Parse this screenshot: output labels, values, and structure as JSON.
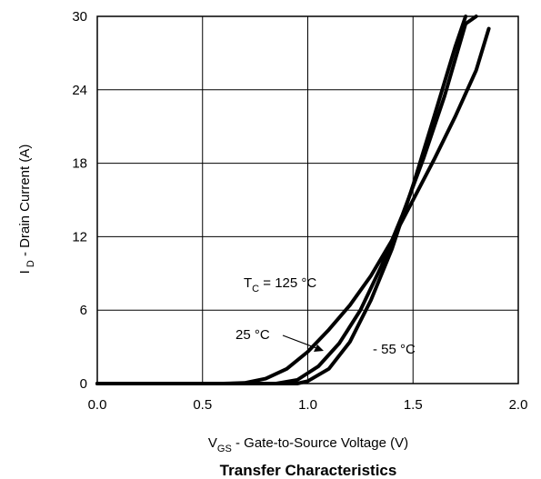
{
  "chart_data": {
    "type": "line",
    "title": "Transfer Characteristics",
    "xlabel": {
      "main": "V",
      "sub": "GS",
      "rest": " - Gate-to-Source Voltage (V)"
    },
    "ylabel": {
      "main": "I",
      "sub": " D",
      "rest": " - Drain Current (A)"
    },
    "xlim": [
      0.0,
      2.0
    ],
    "ylim": [
      0,
      30
    ],
    "x_ticks": [
      "0.0",
      "0.5",
      "1.0",
      "1.5",
      "2.0"
    ],
    "y_ticks": [
      "0",
      "6",
      "12",
      "18",
      "24",
      "30"
    ],
    "grid": true,
    "series": [
      {
        "name": "T_C = 125 °C",
        "points": [
          [
            0.0,
            0
          ],
          [
            0.6,
            0
          ],
          [
            0.7,
            0.05
          ],
          [
            0.8,
            0.4
          ],
          [
            0.9,
            1.2
          ],
          [
            1.0,
            2.6
          ],
          [
            1.1,
            4.4
          ],
          [
            1.2,
            6.4
          ],
          [
            1.3,
            8.8
          ],
          [
            1.4,
            11.7
          ],
          [
            1.5,
            15.0
          ],
          [
            1.6,
            18.3
          ],
          [
            1.7,
            21.8
          ],
          [
            1.8,
            25.6
          ],
          [
            1.86,
            29.0
          ]
        ]
      },
      {
        "name": "25 °C",
        "points": [
          [
            0.0,
            0
          ],
          [
            0.85,
            0
          ],
          [
            0.95,
            0.3
          ],
          [
            1.05,
            1.4
          ],
          [
            1.15,
            3.3
          ],
          [
            1.25,
            6.0
          ],
          [
            1.35,
            9.6
          ],
          [
            1.45,
            13.8
          ],
          [
            1.55,
            18.4
          ],
          [
            1.65,
            23.5
          ],
          [
            1.75,
            29.4
          ],
          [
            1.8,
            30.0
          ]
        ]
      },
      {
        "name": "- 55 °C",
        "points": [
          [
            0.0,
            0
          ],
          [
            0.95,
            0
          ],
          [
            1.0,
            0.2
          ],
          [
            1.1,
            1.2
          ],
          [
            1.2,
            3.4
          ],
          [
            1.3,
            6.8
          ],
          [
            1.4,
            11.0
          ],
          [
            1.5,
            16.2
          ],
          [
            1.6,
            21.8
          ],
          [
            1.7,
            27.5
          ],
          [
            1.75,
            30.0
          ]
        ]
      }
    ],
    "annotations": [
      {
        "text_main": "T",
        "text_sub": "C",
        "text_rest": " = 125 °C"
      },
      {
        "text": "25 °C"
      },
      {
        "text": "- 55 °C"
      }
    ]
  }
}
